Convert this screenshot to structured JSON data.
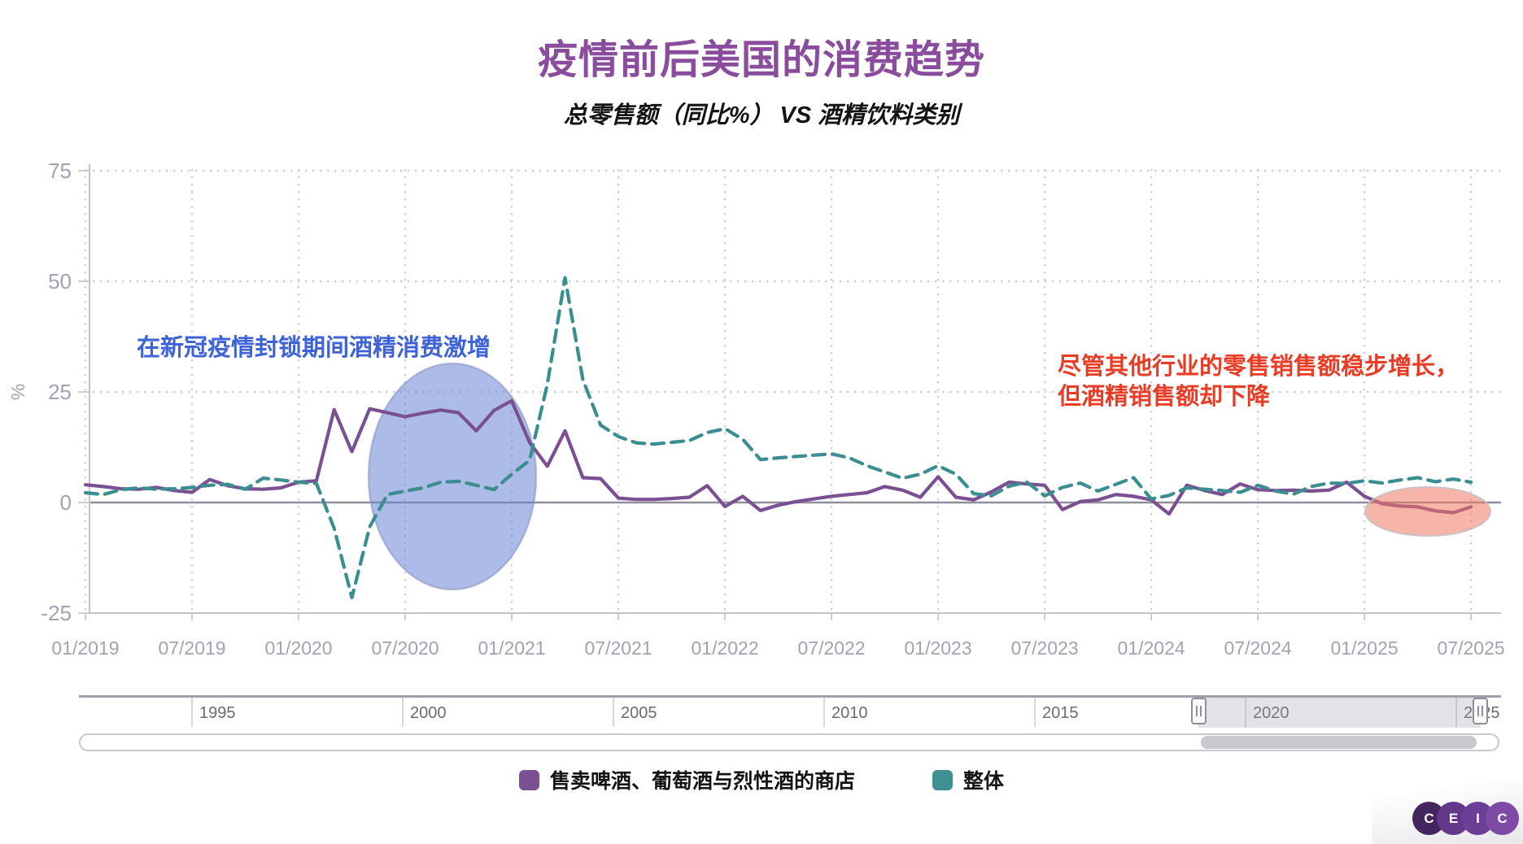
{
  "chart_data": {
    "type": "line",
    "title": "疫情前后美国的消费趋势",
    "subtitle": "总零售额（同比%） VS 酒精饮料类别",
    "y_axis_label": "%",
    "ylim": [
      -25,
      75
    ],
    "y_ticks": [
      75,
      50,
      25,
      0,
      -25
    ],
    "x_start": "2019-01",
    "x_step_months": 1,
    "x_tick_labels": [
      "01/2019",
      "07/2019",
      "01/2020",
      "07/2020",
      "01/2021",
      "07/2021",
      "01/2022",
      "07/2022",
      "01/2023",
      "07/2023",
      "01/2024",
      "07/2024",
      "01/2025",
      "07/2025"
    ],
    "grid": true,
    "legend_position": "bottom",
    "series": [
      {
        "name": "售卖啤酒、葡萄酒与烈性酒的商店",
        "style": "solid",
        "color": "#7a5093",
        "values": [
          4.0,
          3.6,
          3.1,
          3.0,
          3.4,
          2.7,
          2.3,
          5.2,
          3.8,
          3.1,
          3.0,
          3.3,
          4.6,
          4.9,
          21.0,
          11.5,
          21.2,
          20.3,
          19.4,
          20.2,
          20.9,
          20.3,
          16.2,
          20.8,
          23.0,
          13.6,
          8.2,
          16.2,
          5.6,
          5.4,
          1.0,
          0.7,
          0.7,
          0.9,
          1.2,
          3.8,
          -0.9,
          1.4,
          -1.8,
          -0.6,
          0.2,
          0.8,
          1.4,
          1.8,
          2.2,
          3.6,
          2.8,
          1.2,
          5.8,
          1.2,
          0.6,
          2.4,
          4.6,
          4.2,
          3.9,
          -1.6,
          0.2,
          0.6,
          1.8,
          1.4,
          0.6,
          -2.6,
          3.9,
          2.7,
          1.8,
          4.2,
          2.9,
          2.7,
          2.8,
          2.6,
          2.8,
          4.6,
          1.4,
          -0.3,
          -0.8,
          -1.0,
          -1.9,
          -2.3,
          -1.0
        ]
      },
      {
        "name": "整体",
        "style": "dashed",
        "color": "#3a8e90",
        "values": [
          2.2,
          1.8,
          2.9,
          3.3,
          3.0,
          3.1,
          3.4,
          3.9,
          4.1,
          3.0,
          5.5,
          5.1,
          4.6,
          4.3,
          -5.8,
          -21.5,
          -5.5,
          1.8,
          2.6,
          3.3,
          4.6,
          4.8,
          3.9,
          2.9,
          6.4,
          9.5,
          26.7,
          50.8,
          27.8,
          17.5,
          14.9,
          13.5,
          13.2,
          13.6,
          14.0,
          15.8,
          16.7,
          14.3,
          9.7,
          10.1,
          10.4,
          10.7,
          11.0,
          10.1,
          8.3,
          6.9,
          5.5,
          6.4,
          8.3,
          6.4,
          2.0,
          1.5,
          3.7,
          4.6,
          1.5,
          3.4,
          4.4,
          2.6,
          4.1,
          5.6,
          0.8,
          1.6,
          3.3,
          3.0,
          2.7,
          2.3,
          3.9,
          2.6,
          1.9,
          3.6,
          4.4,
          4.3,
          4.9,
          4.4,
          5.1,
          5.6,
          4.7,
          5.3,
          4.6
        ]
      }
    ],
    "annotations": {
      "lockdown_note": {
        "text": "在新冠疫情封锁期间酒精消费激增",
        "color": "#3e63d8"
      },
      "decline_note": {
        "line1": "尽管其他行业的零售销售额稳步增长，",
        "line2": "但酒精销售额却下降",
        "color": "#e93c26"
      },
      "covid_circle": {
        "fill": "rgba(106,132,214,0.55)",
        "stroke": "rgba(125,135,180,0.45)"
      },
      "decline_ellipse": {
        "fill": "rgba(240,120,100,0.55)",
        "stroke": "rgba(195,190,195,0.85)"
      }
    },
    "colors": {
      "title": "#8a4c9c",
      "subtitle": "#141414",
      "tick_text": "#a3a1b4",
      "grid": "#cfcedb",
      "axis": "#c2c1cc",
      "zero_line": "#8f8e9a"
    }
  },
  "navigator": {
    "years": [
      "1995",
      "2000",
      "2005",
      "2010",
      "2015",
      "2020",
      "2025"
    ]
  },
  "legend": [
    {
      "label": "售卖啤酒、葡萄酒与烈性酒的商店",
      "color": "#7a5093"
    },
    {
      "label": "整体",
      "color": "#3f9092"
    }
  ],
  "logo": {
    "letters": [
      "C",
      "E",
      "I",
      "C"
    ],
    "colors": [
      "#42265d",
      "#63388a",
      "#6b3f96",
      "#7d4ba6"
    ]
  }
}
